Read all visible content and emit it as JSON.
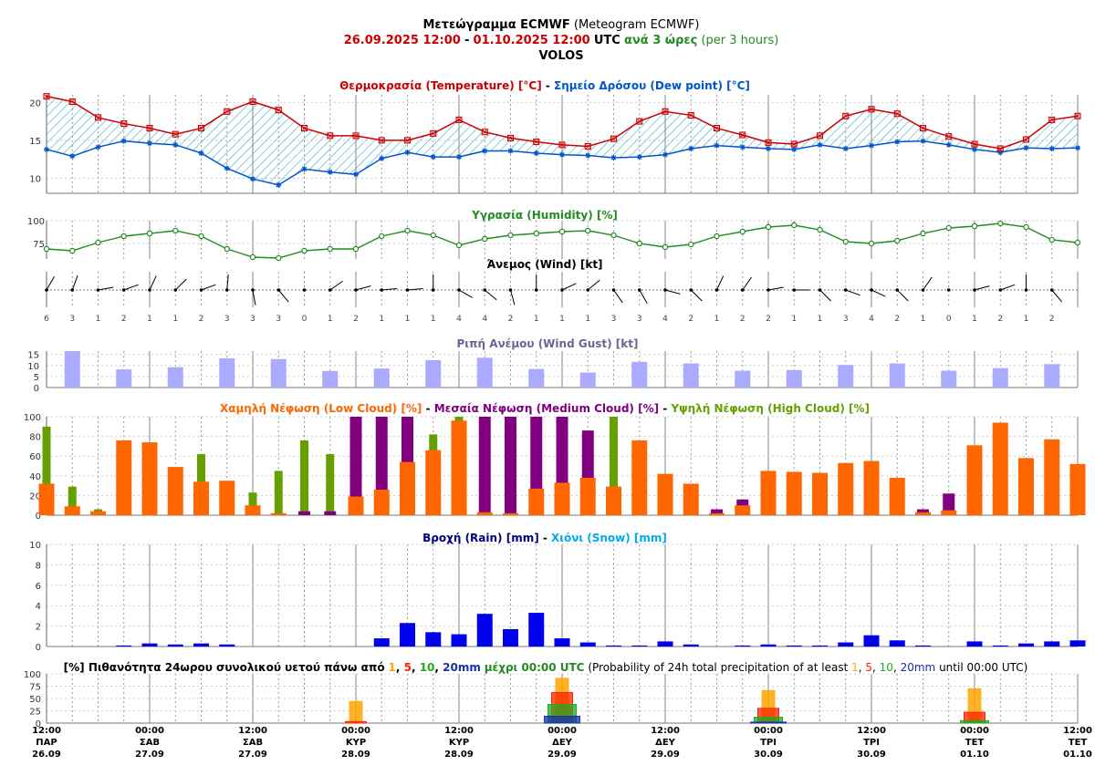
{
  "header": {
    "title_greek": "Μετεώγραμμα ECMWF",
    "title_english": "(Meteogram ECMWF)",
    "date_from": "26.09.2025 12:00",
    "date_to": "01.10.2025 12:00",
    "utc": "UTC",
    "step_greek": "ανά 3 ώρες",
    "step_english": "(per 3 hours)",
    "location": "VOLOS"
  },
  "colors": {
    "temperature": "#cc0000",
    "dew_point": "#0055cc",
    "humidity": "#228b22",
    "wind_gust": "#aaaaff",
    "low_cloud": "#ff6600",
    "medium_cloud": "#800080",
    "high_cloud": "#66a000",
    "rain": "#0000ee",
    "snow": "#00aaee",
    "prob_1mm": "#ffa500",
    "prob_5mm": "#ff2200",
    "prob_10mm": "#22aa22",
    "prob_20mm": "#1a2fa8"
  },
  "time_axis": [
    {
      "hour": "12:00",
      "day": "ΠΑΡ",
      "date": "26.09"
    },
    {
      "hour": "00:00",
      "day": "ΣΑΒ",
      "date": "27.09"
    },
    {
      "hour": "12:00",
      "day": "ΣΑΒ",
      "date": "27.09"
    },
    {
      "hour": "00:00",
      "day": "ΚΥΡ",
      "date": "28.09"
    },
    {
      "hour": "12:00",
      "day": "ΚΥΡ",
      "date": "28.09"
    },
    {
      "hour": "00:00",
      "day": "ΔΕΥ",
      "date": "29.09"
    },
    {
      "hour": "12:00",
      "day": "ΔΕΥ",
      "date": "29.09"
    },
    {
      "hour": "00:00",
      "day": "ΤΡΙ",
      "date": "30.09"
    },
    {
      "hour": "12:00",
      "day": "ΤΡΙ",
      "date": "30.09"
    },
    {
      "hour": "00:00",
      "day": "ΤΕΤ",
      "date": "01.10"
    },
    {
      "hour": "12:00",
      "day": "ΤΕΤ",
      "date": "01.10"
    }
  ],
  "chart_data": [
    {
      "type": "line",
      "panel": "temperature",
      "title_a": "Θερμοκρασία (Temperature) [°C]",
      "separator": " - ",
      "title_b": "Σημείο Δρόσου (Dew point) [°C]",
      "y_ticks": [
        10,
        15,
        20
      ],
      "ylim": [
        8,
        21
      ],
      "series": [
        {
          "name": "Θερμοκρασία (Temperature) [°C]",
          "values": [
            20.8,
            20.1,
            18.0,
            17.2,
            16.6,
            15.8,
            16.6,
            18.8,
            20.1,
            19.0,
            16.6,
            15.6,
            15.6,
            15.0,
            15.0,
            15.9,
            17.7,
            16.1,
            15.3,
            14.8,
            14.4,
            14.2,
            15.2,
            17.5,
            18.8,
            18.3,
            16.6,
            15.7,
            14.7,
            14.5,
            15.6,
            18.2,
            19.1,
            18.5,
            16.6,
            15.5,
            14.5,
            13.9,
            15.1,
            17.7,
            18.2
          ]
        },
        {
          "name": "Σημείο Δρόσου (Dew point) [°C]",
          "values": [
            13.8,
            12.9,
            14.1,
            14.9,
            14.6,
            14.4,
            13.3,
            11.3,
            9.9,
            9.1,
            11.2,
            10.8,
            10.5,
            12.6,
            13.4,
            12.8,
            12.8,
            13.6,
            13.6,
            13.3,
            13.1,
            13.0,
            12.7,
            12.8,
            13.1,
            13.9,
            14.3,
            14.1,
            13.9,
            13.8,
            14.4,
            13.9,
            14.3,
            14.8,
            14.9,
            14.4,
            13.8,
            13.4,
            14.0,
            13.9,
            14.0
          ]
        }
      ]
    },
    {
      "type": "line",
      "panel": "humidity",
      "title": "Υγρασία (Humidity) [%]",
      "y_ticks": [
        75,
        100
      ],
      "ylim": [
        58,
        100
      ],
      "series": [
        {
          "name": "Υγρασία (Humidity) [%]",
          "values": [
            69,
            67,
            76,
            83,
            86,
            89,
            83,
            69,
            60,
            59,
            67,
            69,
            69,
            83,
            89,
            84,
            73,
            80,
            84,
            86,
            88,
            89,
            84,
            75,
            71,
            74,
            83,
            88,
            93,
            95,
            90,
            77,
            75,
            78,
            86,
            92,
            94,
            97,
            93,
            79,
            76
          ]
        }
      ]
    },
    {
      "type": "scatter",
      "panel": "wind",
      "title": "Άνεμος (Wind) [kt]",
      "speeds": [
        6,
        3,
        1,
        2,
        1,
        1,
        2,
        3,
        3,
        3,
        0,
        1,
        2,
        1,
        1,
        1,
        4,
        4,
        2,
        1,
        1,
        1,
        3,
        3,
        4,
        2,
        1,
        2,
        2,
        1,
        1,
        3,
        4,
        2,
        1,
        0,
        1,
        2,
        1,
        2
      ],
      "angles": [
        -30,
        -20,
        -80,
        -70,
        -25,
        -45,
        -70,
        -5,
        10,
        40,
        0,
        -55,
        -75,
        -85,
        -85,
        0,
        60,
        50,
        15,
        0,
        -65,
        -50,
        35,
        30,
        75,
        45,
        -25,
        -35,
        -80,
        -90,
        45,
        70,
        65,
        45,
        -35,
        0,
        -75,
        -70,
        0,
        40
      ],
      "flag_above": [
        true,
        true,
        true,
        true,
        true,
        true,
        true,
        true,
        false,
        false,
        true,
        true,
        true,
        true,
        true,
        true,
        false,
        false,
        false,
        true,
        true,
        true,
        false,
        false,
        false,
        false,
        true,
        true,
        true,
        true,
        false,
        false,
        false,
        false,
        true,
        true,
        true,
        true,
        true,
        false
      ]
    },
    {
      "type": "bar",
      "panel": "wind_gust",
      "title": "Ριπή Ανέμου (Wind Gust) [kt]",
      "y_ticks": [
        0,
        5,
        10,
        15
      ],
      "ylim": [
        0,
        16.5
      ],
      "values": [
        16.5,
        8.2,
        9.2,
        13.2,
        12.9,
        7.5,
        8.6,
        12.4,
        13.5,
        8.4,
        6.8,
        11.6,
        10.9,
        7.6,
        7.9,
        10.2,
        10.9,
        7.6,
        8.8,
        10.6
      ]
    },
    {
      "type": "bar",
      "panel": "clouds",
      "title_low": "Χαμηλή Νέφωση (Low Cloud) [%]",
      "title_medium": "Μεσαία Νέφωση (Medium Cloud) [%]",
      "title_high": "Υψηλή Νέφωση (High Cloud) [%]",
      "separator": " - ",
      "y_ticks": [
        0,
        20,
        40,
        60,
        80,
        100
      ],
      "ylim": [
        0,
        100
      ],
      "series": [
        {
          "name": "Χαμηλή Νέφωση (Low Cloud) [%]",
          "values": [
            32,
            9,
            4,
            76,
            74,
            49,
            34,
            35,
            10,
            2,
            0,
            0,
            19,
            26,
            54,
            66,
            96,
            3,
            2,
            27,
            33,
            38,
            29,
            76,
            42,
            32,
            2,
            10,
            45,
            44,
            43,
            53,
            55,
            38,
            3,
            5,
            71,
            94,
            58,
            77,
            52
          ]
        },
        {
          "name": "Μεσαία Νέφωση (Medium Cloud) [%]",
          "values": [
            0,
            0,
            0,
            0,
            0,
            0,
            0,
            0,
            0,
            0,
            4,
            4,
            100,
            100,
            100,
            0,
            0,
            100,
            100,
            100,
            100,
            86,
            0,
            0,
            0,
            0,
            6,
            16,
            0,
            0,
            0,
            0,
            0,
            0,
            6,
            22,
            0,
            0,
            0,
            0,
            0
          ]
        },
        {
          "name": "Υψηλή Νέφωση (High Cloud) [%]",
          "values": [
            90,
            29,
            6,
            0,
            0,
            0,
            62,
            0,
            23,
            45,
            76,
            62,
            0,
            0,
            0,
            82,
            100,
            0,
            0,
            0,
            0,
            0,
            100,
            0,
            0,
            0,
            0,
            0,
            0,
            0,
            0,
            0,
            0,
            0,
            0,
            0,
            0,
            0,
            0,
            0,
            0
          ]
        }
      ]
    },
    {
      "type": "bar",
      "panel": "precipitation",
      "title_rain": "Βροχή (Rain) [mm]",
      "separator": " - ",
      "title_snow": "Χιόνι (Snow) [mm]",
      "y_ticks": [
        0,
        2,
        4,
        6,
        8,
        10
      ],
      "ylim": [
        0,
        10
      ],
      "series": [
        {
          "name": "Βροχή (Rain) [mm]",
          "values": [
            0,
            0,
            0,
            0.1,
            0.3,
            0.2,
            0.3,
            0.2,
            0,
            0,
            0,
            0,
            0,
            0.8,
            2.3,
            1.4,
            1.2,
            3.2,
            1.7,
            3.3,
            0.8,
            0.4,
            0.1,
            0.1,
            0.5,
            0.2,
            0,
            0.1,
            0.2,
            0.1,
            0.1,
            0.4,
            1.1,
            0.6,
            0.1,
            0,
            0.5,
            0.1,
            0.3,
            0.5,
            0.6
          ]
        },
        {
          "name": "Χιόνι (Snow) [mm]",
          "values": []
        }
      ]
    },
    {
      "type": "bar",
      "panel": "probability",
      "title_greek_a": "[%] Πιθανότητα 24ωρου συνολικού υετού πάνω από",
      "title_greek_b": "μέχρι 00:00 UTC",
      "title_english_a": "(Probability of 24h total precipitation of at least",
      "title_english_b": "until 00:00 UTC)",
      "thresholds": [
        "1",
        "5",
        "10",
        "20mm"
      ],
      "threshold_labels_plain": [
        "1",
        "5",
        "10",
        "20mm"
      ],
      "y_ticks": [
        0,
        25,
        50,
        75,
        100
      ],
      "ylim": [
        0,
        100
      ],
      "categories": [
        "28.09",
        "29.09",
        "30.09",
        "01.10"
      ],
      "series": [
        {
          "name": "1",
          "values": [
            45,
            92,
            67,
            71
          ]
        },
        {
          "name": "5",
          "values": [
            3,
            62,
            30,
            22
          ]
        },
        {
          "name": "10",
          "values": [
            0,
            38,
            12,
            5
          ]
        },
        {
          "name": "20mm",
          "values": [
            0,
            14,
            2,
            0
          ]
        }
      ]
    }
  ]
}
